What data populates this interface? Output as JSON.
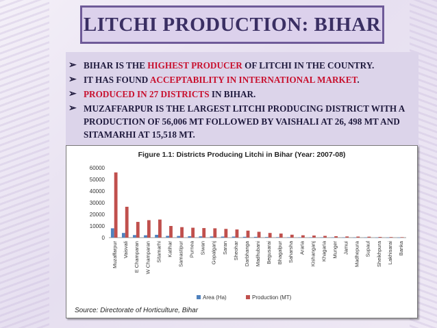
{
  "slide": {
    "title": "LITCHI PRODUCTION: BIHAR",
    "bullets": [
      {
        "parts": [
          {
            "t": "BIHAR IS THE "
          },
          {
            "t": "HIGHEST PRODUCER",
            "hl": true
          },
          {
            "t": " OF LITCHI IN THE COUNTRY."
          }
        ]
      },
      {
        "parts": [
          {
            "t": "IT HAS FOUND "
          },
          {
            "t": "ACCEPTABILITY IN INTERNATIONAL MARKET",
            "hl": true
          },
          {
            "t": "."
          }
        ]
      },
      {
        "parts": [
          {
            "t": "PRODUCED IN 27 DISTRICTS",
            "hl": true
          },
          {
            "t": " IN BIHAR."
          }
        ]
      },
      {
        "parts": [
          {
            "t": "MUZAFFARPUR IS THE LARGEST LITCHI PRODUCING DISTRICT WITH A PRODUCTION OF 56,006 MT FOLLOWED BY VAISHALI AT 26, 498 MT AND SITAMARHI AT 15,518 MT."
          }
        ]
      }
    ],
    "source": "Source: Directorate of Horticulture, Bihar"
  },
  "colors": {
    "accent": "#6e5a98",
    "highlight": "#c8102e",
    "area": "#4f81bd",
    "production": "#c0504d"
  },
  "chart_data": {
    "type": "bar",
    "title": "Figure 1.1: Districts Producing Litchi in Bihar (Year: 2007-08)",
    "categories": [
      "Muzaffarpur",
      "Vaisvali",
      "E Champaran",
      "W Champaran",
      "Sitamarhi",
      "Katihar",
      "Samastipur",
      "Purnea",
      "Siwan",
      "Gopalganj",
      "Saran",
      "Sheohar",
      "Darbhanga",
      "Madhubani",
      "Begusarai",
      "Bhagalpur",
      "Saharsha",
      "Araria",
      "Kishanganj",
      "Khagaria",
      "Munger",
      "Jamui",
      "Madhepura",
      "Supaul",
      "Sheikhpura",
      "Lakhisarai",
      "Banka"
    ],
    "series": [
      {
        "name": "Area (Ha)",
        "values": [
          8000,
          4000,
          2200,
          2000,
          2400,
          1500,
          1400,
          1200,
          1100,
          1000,
          900,
          900,
          700,
          650,
          500,
          400,
          350,
          300,
          300,
          250,
          200,
          180,
          150,
          150,
          100,
          100,
          80
        ]
      },
      {
        "name": "Production (MT)",
        "values": [
          56006,
          26498,
          13500,
          15000,
          15518,
          10000,
          9000,
          8500,
          8200,
          8000,
          7500,
          7000,
          6000,
          5000,
          4000,
          3500,
          2500,
          2000,
          1800,
          1500,
          1200,
          1000,
          900,
          800,
          600,
          500,
          400
        ]
      }
    ],
    "yticks": [
      0,
      10000,
      20000,
      30000,
      40000,
      50000,
      60000
    ],
    "ylim": [
      0,
      60000
    ],
    "legend_position": "bottom",
    "grid": false
  }
}
